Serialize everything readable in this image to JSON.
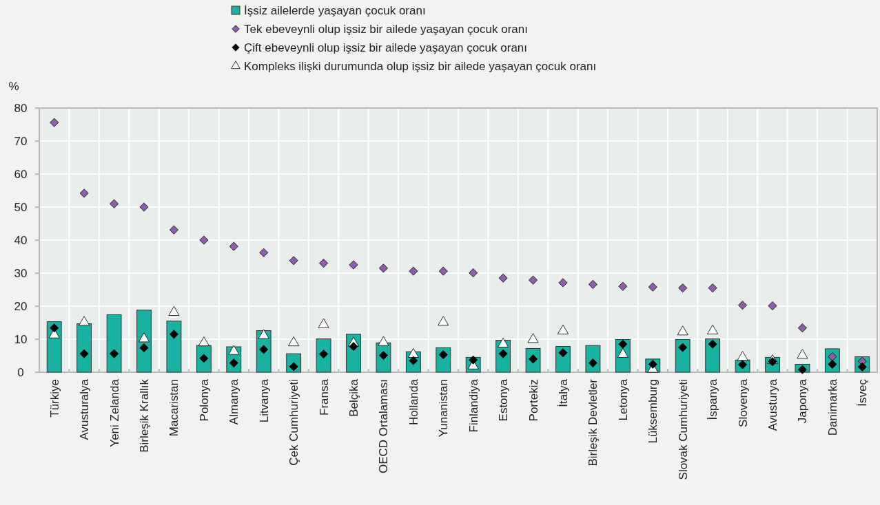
{
  "chart_data": {
    "type": "bar",
    "ylabel": "%",
    "categories": [
      "Türkiye",
      "Avusturalya",
      "Yeni Zelanda",
      "Birleşik Krallık",
      "Macaristan",
      "Polonya",
      "Almanya",
      "Litvanya",
      "Çek Cumhuriyeti",
      "Fransa",
      "Belçika",
      "OECD Ortalaması",
      "Hollanda",
      "Yunanistan",
      "Finlandiya",
      "Estonya",
      "Portekiz",
      "İtalya",
      "Birleşik Devletler",
      "Letonya",
      "Lüksemburg",
      "Slovak Cumhuriyeti",
      "İspanya",
      "Slovenya",
      "Avusturya",
      "Japonya",
      "Danimarka",
      "İsveç"
    ],
    "series": [
      {
        "name": "İşsiz ailelerde yaşayan çocuk oranı",
        "color": "#19b2a0",
        "values": [
          15.3,
          14.7,
          17.4,
          18.8,
          15.5,
          8.1,
          7.7,
          12.6,
          5.6,
          10.1,
          11.5,
          8.9,
          6.2,
          7.4,
          4.5,
          9.7,
          7.2,
          7.8,
          8.1,
          9.9,
          4.0,
          9.9,
          10.1,
          3.7,
          4.5,
          2.4,
          7.1,
          4.7
        ]
      },
      {
        "name": "Tek ebeveynli olup işsiz bir ailede yaşayan çocuk oranı",
        "type": "scatter",
        "marker": "diamond",
        "color": "#8c5fa8",
        "values": [
          75.6,
          54.2,
          51.0,
          50.0,
          43.1,
          40.0,
          38.1,
          36.2,
          33.8,
          33.0,
          32.5,
          31.5,
          30.6,
          30.6,
          30.1,
          28.5,
          27.9,
          27.1,
          26.6,
          26.0,
          25.8,
          25.5,
          25.5,
          20.3,
          20.1,
          13.4,
          4.7,
          3.3
        ]
      },
      {
        "name": "Çift ebeveynli olup işsiz bir ailede yaşayan çocuk oranı",
        "type": "scatter",
        "marker": "diamond",
        "color": "#000000",
        "values": [
          13.4,
          5.6,
          5.6,
          7.4,
          11.5,
          4.2,
          2.8,
          6.9,
          1.7,
          5.5,
          7.8,
          5.1,
          3.5,
          5.3,
          3.7,
          5.6,
          4.0,
          5.9,
          2.8,
          8.5,
          2.4,
          7.5,
          8.5,
          2.3,
          3.2,
          0.8,
          2.4,
          1.6
        ]
      },
      {
        "name": "Kompleks ilişki durumunda olup işsiz bir ailede yaşayan çocuk oranı",
        "type": "scatter",
        "marker": "triangle",
        "color": "#ffffff",
        "values": [
          11.3,
          15.1,
          null,
          10.1,
          18.1,
          8.9,
          6.3,
          11.1,
          8.9,
          14.4,
          8.8,
          9.0,
          5.4,
          15.1,
          1.9,
          8.5,
          9.9,
          12.5,
          null,
          5.4,
          0.9,
          12.2,
          12.5,
          4.5,
          3.5,
          5.1,
          null,
          null
        ]
      }
    ],
    "ylim": [
      0,
      80
    ],
    "yticks": [
      0,
      10,
      20,
      30,
      40,
      50,
      60,
      70,
      80
    ],
    "grid": true,
    "legend": "top"
  }
}
